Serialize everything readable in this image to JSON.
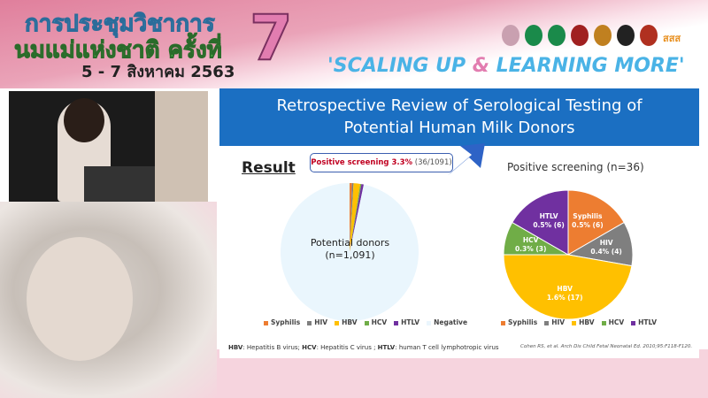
{
  "banner": {
    "line1": "การประชุมวิชาการ",
    "line2": "นมแม่แห่งชาติ ครั้งที่",
    "dates": "5 - 7 สิงหาคม 2563",
    "edition": "7",
    "slogan_a": "'SCALING UP ",
    "slogan_amp": "&",
    "slogan_b": " LEARNING MORE'",
    "logos_text": "สสส"
  },
  "slide": {
    "title_line1": "Retrospective Review of Serological Testing of",
    "title_line2": "Potential Human Milk Donors",
    "result_label": "Result",
    "callout_bold": "Positive screening 3.3%",
    "callout_rest": " (36/1091)",
    "center_label_1": "Potential donors",
    "center_label_2": "(n=1,091)",
    "footnote_hbv": "HBV",
    "footnote_hbv_text": ": Hepatitis B virus; ",
    "footnote_hcv": "HCV",
    "footnote_hcv_text": ": Hepatitis C virus ; ",
    "footnote_htlv": "HTLV",
    "footnote_htlv_text": ": human T cell lymphotropic virus",
    "citation": "Cohen RS, et al. Arch Dis Child Fetal Neonatal Ed. 2010;95:F118-F120."
  },
  "chart_data": [
    {
      "type": "pie",
      "title": "",
      "categories": [
        "Syphilis",
        "HIV",
        "HBV",
        "HCV",
        "HTLV",
        "Negative"
      ],
      "values": [
        6,
        4,
        17,
        3,
        6,
        1055
      ],
      "colors": [
        "#ed7d31",
        "#7f7f7f",
        "#ffc000",
        "#70ad47",
        "#7030a0",
        "#eaf6fd"
      ],
      "legend": "bottom"
    },
    {
      "type": "pie",
      "title": "Positive screening (n=36)",
      "categories": [
        "Syphilis",
        "HIV",
        "HBV",
        "HCV",
        "HTLV"
      ],
      "values": [
        6,
        4,
        17,
        3,
        6
      ],
      "labels": [
        "0.5% (6)",
        "0.4% (4)",
        "1.6% (17)",
        "0.3% (3)",
        "0.5% (6)"
      ],
      "colors": [
        "#ed7d31",
        "#7f7f7f",
        "#ffc000",
        "#70ad47",
        "#7030a0"
      ],
      "legend": "bottom"
    }
  ]
}
